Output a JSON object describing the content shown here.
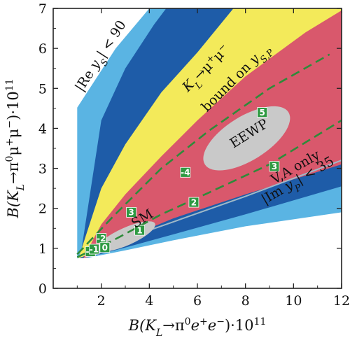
{
  "chart_data": {
    "type": "area",
    "title": "",
    "xlabel": "B(K_L→π⁰e⁺e⁻)·10¹¹",
    "ylabel": "B(K_L→π⁰μ⁺μ⁻)·10¹¹",
    "xlim": [
      0,
      12
    ],
    "ylim": [
      0,
      7
    ],
    "xticks": [
      2,
      4,
      6,
      8,
      10,
      12
    ],
    "yticks": [
      0,
      1,
      2,
      3,
      4,
      5,
      6,
      7
    ],
    "xtick_labels": [
      "2",
      "4",
      "6",
      "8",
      "10",
      "12"
    ],
    "ytick_labels": [
      "0",
      "1",
      "2",
      "3",
      "4",
      "5",
      "6",
      "7"
    ],
    "grid": false,
    "colors": {
      "light_blue": "#5ab4e3",
      "dark_blue": "#1e5ca8",
      "yellow": "#f3ea5a",
      "pink": "#d9586c",
      "gray": "#c9c9c9",
      "marker": "#2e9a42",
      "dashed": "#2e8b3a"
    },
    "regions": [
      {
        "id": "light-blue",
        "name": "|Re y_S| < 90",
        "color": "#5ab4e3",
        "polygon": [
          [
            1,
            0.75
          ],
          [
            1,
            4.52
          ],
          [
            2.6,
            6.0
          ],
          [
            4.0,
            7.0
          ],
          [
            12,
            7.0
          ],
          [
            12,
            1.9
          ],
          [
            8,
            1.55
          ],
          [
            5,
            1.2
          ],
          [
            3,
            0.95
          ],
          [
            1.5,
            0.77
          ]
        ]
      },
      {
        "id": "dark-blue",
        "color": "#1e5ca8",
        "polygon": [
          [
            1.12,
            0.75
          ],
          [
            2.0,
            4.2
          ],
          [
            3.0,
            5.5
          ],
          [
            4.2,
            6.6
          ],
          [
            4.7,
            7.0
          ],
          [
            12,
            7.0
          ],
          [
            12,
            2.55
          ],
          [
            8,
            1.85
          ],
          [
            5,
            1.35
          ],
          [
            3,
            1.02
          ],
          [
            1.5,
            0.78
          ]
        ]
      },
      {
        "id": "yellow",
        "name": "K_L→μ⁺μ⁻ bound on y_S,P",
        "color": "#f3ea5a",
        "polygon": [
          [
            1.05,
            0.75
          ],
          [
            2.0,
            2.5
          ],
          [
            3.0,
            3.6
          ],
          [
            4.5,
            4.9
          ],
          [
            6.0,
            5.9
          ],
          [
            7.5,
            7.0
          ],
          [
            12,
            7.0
          ],
          [
            12,
            3.2
          ],
          [
            8,
            2.45
          ],
          [
            5,
            1.9
          ],
          [
            3,
            1.4
          ],
          [
            1.5,
            0.85
          ]
        ]
      },
      {
        "id": "pink",
        "name": "|Im y_P| < 35",
        "color": "#d9586c",
        "polygon": [
          [
            1.25,
            0.75
          ],
          [
            2.0,
            1.6
          ],
          [
            3.0,
            2.35
          ],
          [
            4.5,
            3.3
          ],
          [
            6.0,
            4.2
          ],
          [
            8.0,
            5.3
          ],
          [
            10.5,
            6.4
          ],
          [
            12,
            6.95
          ],
          [
            12,
            3.1
          ],
          [
            8,
            2.35
          ],
          [
            5,
            1.75
          ],
          [
            3,
            1.25
          ],
          [
            1.5,
            0.8
          ]
        ]
      }
    ],
    "ellipses": [
      {
        "id": "eewp",
        "label": "EEWP",
        "cx": 8.05,
        "cy": 3.75,
        "rx": 2.05,
        "ry": 0.55,
        "rotation_deg": 32,
        "color": "#c9c9c9"
      },
      {
        "id": "sm",
        "label": "SM",
        "cx": 3.05,
        "cy": 1.3,
        "rx": 1.3,
        "ry": 0.22,
        "rotation_deg": 24,
        "color": "#c9c9c9"
      }
    ],
    "dashed_lines": [
      {
        "id": "upper",
        "points": [
          [
            1.0,
            0.85
          ],
          [
            2.5,
            1.8
          ],
          [
            4.5,
            3.0
          ],
          [
            6.5,
            3.95
          ],
          [
            9.0,
            5.0
          ],
          [
            11.5,
            5.85
          ]
        ]
      },
      {
        "id": "lower",
        "points": [
          [
            1.0,
            0.78
          ],
          [
            2.5,
            1.2
          ],
          [
            4.5,
            1.85
          ],
          [
            6.5,
            2.4
          ],
          [
            9.0,
            3.1
          ],
          [
            12,
            4.2
          ]
        ]
      }
    ],
    "gray_thin_line": {
      "points": [
        [
          1.6,
          0.8
        ],
        [
          4,
          1.45
        ],
        [
          8,
          2.3
        ],
        [
          12,
          3.2
        ]
      ]
    },
    "markers": [
      {
        "label": "-5",
        "x": 1.55,
        "y": 0.92
      },
      {
        "label": "-2",
        "x": 2.0,
        "y": 1.25
      },
      {
        "label": "-1",
        "x": 1.7,
        "y": 0.98
      },
      {
        "label": "0",
        "x": 2.15,
        "y": 1.02
      },
      {
        "label": "1",
        "x": 3.6,
        "y": 1.45
      },
      {
        "label": "2",
        "x": 5.85,
        "y": 2.15
      },
      {
        "label": "3",
        "x": 9.2,
        "y": 3.05
      },
      {
        "label": "3",
        "x": 3.25,
        "y": 1.9
      },
      {
        "label": "-4",
        "x": 5.5,
        "y": 2.9
      },
      {
        "label": "5",
        "x": 8.7,
        "y": 4.4
      }
    ],
    "labels": [
      {
        "text": "|Re y_S| < 90",
        "x": 1.2,
        "y": 4.9,
        "rotation": -57
      },
      {
        "text": "K_L→μ⁺μ⁻",
        "x": 5.6,
        "y": 4.9,
        "rotation": -45
      },
      {
        "text": "bound on y_S,P",
        "x": 6.4,
        "y": 4.4,
        "rotation": -45
      },
      {
        "text": "EEWP",
        "x": 7.5,
        "y": 3.5,
        "rotation": -32
      },
      {
        "text": "SM",
        "x": 3.4,
        "y": 1.5,
        "rotation": -32
      },
      {
        "text": "V,A only",
        "x": 9.2,
        "y": 2.6,
        "rotation": -30
      },
      {
        "text": "|Im y_P| < 35",
        "x": 8.8,
        "y": 2.1,
        "rotation": -30
      }
    ]
  }
}
